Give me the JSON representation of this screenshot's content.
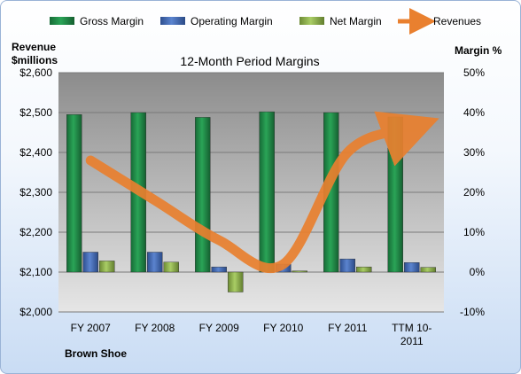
{
  "chart_data": {
    "type": "bar",
    "title": "12-Month Period Margins",
    "company": "Brown Shoe",
    "ylabel_left_line1": "Revenue",
    "ylabel_left_line2": "$millions",
    "ylabel_right": "Margin %",
    "categories": [
      "FY 2007",
      "FY 2008",
      "FY 2009",
      "FY 2010",
      "FY 2011",
      "TTM 10-2011"
    ],
    "category_lines": [
      [
        "FY 2007"
      ],
      [
        "FY 2008"
      ],
      [
        "FY 2009"
      ],
      [
        "FY 2010"
      ],
      [
        "FY 2011"
      ],
      [
        "TTM 10-",
        "2011"
      ]
    ],
    "left_axis": {
      "min": 2000,
      "max": 2600,
      "ticks": [
        "$2,000",
        "$2,100",
        "$2,200",
        "$2,300",
        "$2,400",
        "$2,500",
        "$2,600"
      ]
    },
    "right_axis": {
      "min": -10,
      "max": 50,
      "ticks": [
        "-10%",
        "0%",
        "10%",
        "20%",
        "30%",
        "40%",
        "50%"
      ]
    },
    "series": [
      {
        "name": "Gross Margin",
        "axis": "right",
        "kind": "bar",
        "color": "#1e8b47",
        "values": [
          39.5,
          40.0,
          38.8,
          40.2,
          40.0,
          38.9
        ]
      },
      {
        "name": "Operating Margin",
        "axis": "right",
        "kind": "bar",
        "color": "#3f65b0",
        "values": [
          5.0,
          5.0,
          1.3,
          2.0,
          3.3,
          2.4
        ]
      },
      {
        "name": "Net Margin",
        "axis": "right",
        "kind": "bar",
        "color": "#8db04a",
        "values": [
          2.8,
          2.5,
          -5.0,
          0.3,
          1.3,
          1.2
        ]
      },
      {
        "name": "Revenues",
        "axis": "left",
        "kind": "line",
        "color": "#e9802f",
        "values": [
          2380,
          2280,
          2180,
          2120,
          2400,
          2460
        ]
      }
    ],
    "grid": true,
    "legend_position": "top"
  }
}
